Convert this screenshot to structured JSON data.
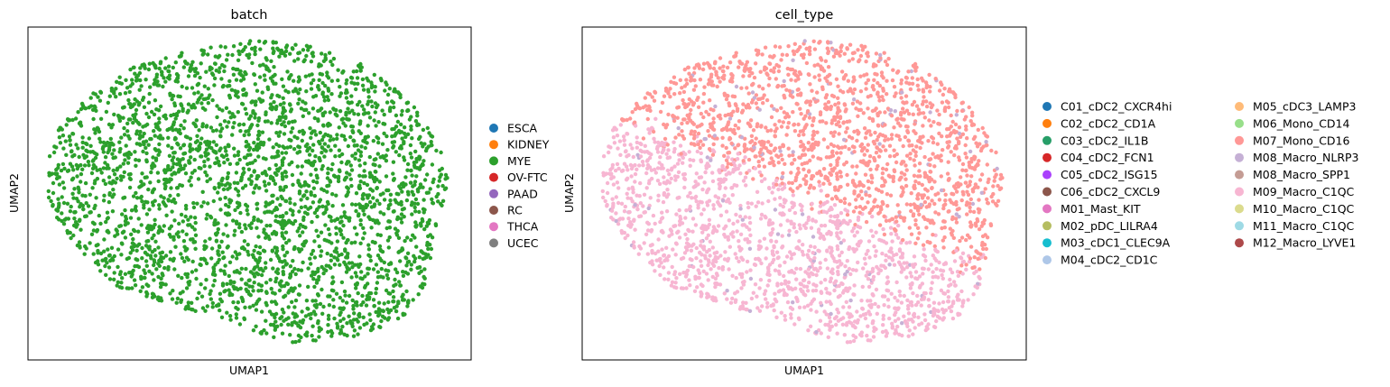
{
  "panels": [
    {
      "title": "batch",
      "xlabel": "UMAP1",
      "ylabel": "UMAP2",
      "legend": [
        {
          "label": "ESCA",
          "color": "#1f77b4"
        },
        {
          "label": "KIDNEY",
          "color": "#ff7f0e"
        },
        {
          "label": "MYE",
          "color": "#2ca02c"
        },
        {
          "label": "OV-FTC",
          "color": "#d62728"
        },
        {
          "label": "PAAD",
          "color": "#9467bd"
        },
        {
          "label": "RC",
          "color": "#8c564b"
        },
        {
          "label": "THCA",
          "color": "#e377c2"
        },
        {
          "label": "UCEC",
          "color": "#7f7f7f"
        }
      ]
    },
    {
      "title": "cell_type",
      "xlabel": "UMAP1",
      "ylabel": "UMAP2",
      "legend": [
        {
          "label": "C01_cDC2_CXCR4hi",
          "color": "#1f77b4"
        },
        {
          "label": "C02_cDC2_CD1A",
          "color": "#ff7f0e"
        },
        {
          "label": "C03_cDC2_IL1B",
          "color": "#279e68"
        },
        {
          "label": "C04_cDC2_FCN1",
          "color": "#d62728"
        },
        {
          "label": "C05_cDC2_ISG15",
          "color": "#aa40fc"
        },
        {
          "label": "C06_cDC2_CXCL9",
          "color": "#8c564b"
        },
        {
          "label": "M01_Mast_KIT",
          "color": "#e377c2"
        },
        {
          "label": "M02_pDC_LILRA4",
          "color": "#b5bd61"
        },
        {
          "label": "M03_cDC1_CLEC9A",
          "color": "#17becf"
        },
        {
          "label": "M04_cDC2_CD1C",
          "color": "#aec7e8"
        },
        {
          "label": "M05_cDC3_LAMP3",
          "color": "#ffbb78"
        },
        {
          "label": "M06_Mono_CD14",
          "color": "#98df8a"
        },
        {
          "label": "M07_Mono_CD16",
          "color": "#ff9896"
        },
        {
          "label": "M08_Macro_NLRP3",
          "color": "#c5b0d5"
        },
        {
          "label": "M08_Macro_SPP1",
          "color": "#c49c94"
        },
        {
          "label": "M09_Macro_C1QC",
          "color": "#f7b6d2"
        },
        {
          "label": "M10_Macro_C1QC",
          "color": "#dbdb8d"
        },
        {
          "label": "M11_Macro_C1QC",
          "color": "#9edae5"
        },
        {
          "label": "M12_Macro_LYVE1",
          "color": "#ad494a"
        }
      ]
    }
  ],
  "chart_data": [
    {
      "type": "scatter",
      "title": "batch",
      "xlabel": "UMAP1",
      "ylabel": "UMAP2",
      "ticks": "none",
      "grid": false,
      "legend_placement": "right",
      "approx_point_count": 3000,
      "series": [
        {
          "name": "MYE",
          "color": "#2ca02c",
          "share": 1.0
        }
      ],
      "legend_entries": [
        "ESCA",
        "KIDNEY",
        "MYE",
        "OV-FTC",
        "PAAD",
        "RC",
        "THCA",
        "UCEC"
      ]
    },
    {
      "type": "scatter",
      "title": "cell_type",
      "xlabel": "UMAP1",
      "ylabel": "UMAP2",
      "ticks": "none",
      "grid": false,
      "legend_placement": "right",
      "approx_point_count": 3000,
      "series": [
        {
          "name": "M07_Mono_CD16",
          "color": "#ff9896",
          "region": "upper"
        },
        {
          "name": "M09_Macro_C1QC",
          "color": "#f7b6d2",
          "region": "lower-left"
        },
        {
          "name": "M08_Macro_NLRP3",
          "color": "#c5b0d5",
          "region": "scattered"
        }
      ],
      "legend_entries": [
        "C01_cDC2_CXCR4hi",
        "C02_cDC2_CD1A",
        "C03_cDC2_IL1B",
        "C04_cDC2_FCN1",
        "C05_cDC2_ISG15",
        "C06_cDC2_CXCL9",
        "M01_Mast_KIT",
        "M02_pDC_LILRA4",
        "M03_cDC1_CLEC9A",
        "M04_cDC2_CD1C",
        "M05_cDC3_LAMP3",
        "M06_Mono_CD14",
        "M07_Mono_CD16",
        "M08_Macro_NLRP3",
        "M08_Macro_SPP1",
        "M09_Macro_C1QC",
        "M10_Macro_C1QC",
        "M11_Macro_C1QC",
        "M12_Macro_LYVE1"
      ]
    }
  ]
}
